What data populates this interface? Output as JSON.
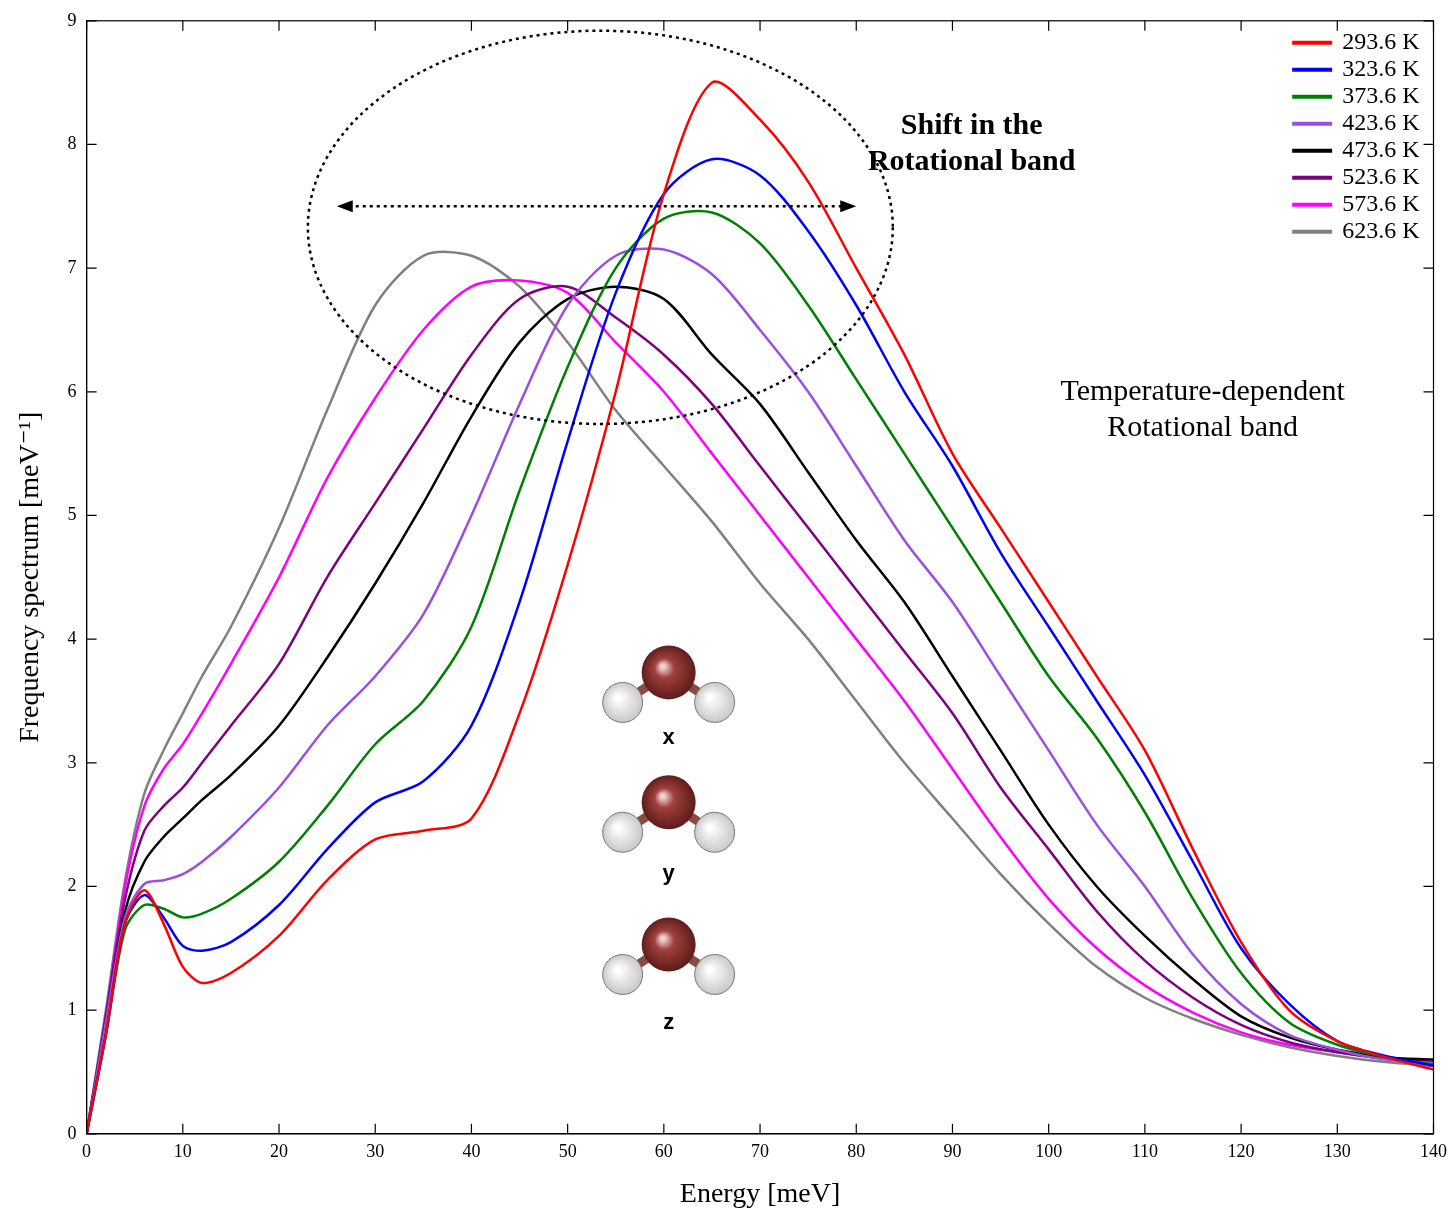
{
  "chart_data": {
    "type": "line",
    "x_label": "Energy [meV]",
    "y_label": "Frequency spectrum [meV⁻¹]",
    "x": [
      0,
      2,
      4,
      6,
      8,
      10,
      12,
      15,
      20,
      25,
      30,
      35,
      40,
      45,
      50,
      55,
      60,
      65,
      70,
      75,
      80,
      85,
      90,
      95,
      100,
      105,
      110,
      115,
      120,
      125,
      130,
      135,
      140
    ],
    "xlim": [
      0,
      140
    ],
    "xticks": [
      0,
      10,
      20,
      30,
      40,
      50,
      60,
      70,
      80,
      90,
      100,
      110,
      120,
      130,
      140
    ],
    "ylim": [
      0,
      9
    ],
    "yticks": [
      0,
      1,
      2,
      3,
      4,
      5,
      6,
      7,
      8,
      9
    ],
    "grid": false,
    "legend": "upper right",
    "series": [
      {
        "name": "293.6 K",
        "color": "#ff0000",
        "values": [
          0,
          0.8,
          1.7,
          1.97,
          1.7,
          1.35,
          1.22,
          1.3,
          1.6,
          2.05,
          2.38,
          2.45,
          2.55,
          3.4,
          4.6,
          6.0,
          7.6,
          8.5,
          8.2,
          7.7,
          7.0,
          6.3,
          5.5,
          4.9,
          4.3,
          3.7,
          3.1,
          2.3,
          1.55,
          1.0,
          0.75,
          0.62,
          0.52
        ]
      },
      {
        "name": "323.6 K",
        "color": "#0000ff",
        "values": [
          0,
          0.8,
          1.7,
          1.93,
          1.75,
          1.52,
          1.48,
          1.55,
          1.85,
          2.3,
          2.68,
          2.85,
          3.3,
          4.3,
          5.6,
          6.8,
          7.6,
          7.88,
          7.75,
          7.3,
          6.7,
          6.0,
          5.4,
          4.7,
          4.1,
          3.5,
          2.9,
          2.2,
          1.5,
          1.05,
          0.75,
          0.63,
          0.55
        ]
      },
      {
        "name": "373.6 K",
        "color": "#008000",
        "values": [
          0,
          0.8,
          1.65,
          1.85,
          1.82,
          1.75,
          1.78,
          1.9,
          2.2,
          2.65,
          3.15,
          3.5,
          4.1,
          5.2,
          6.2,
          7.0,
          7.4,
          7.45,
          7.2,
          6.7,
          6.1,
          5.5,
          4.9,
          4.3,
          3.7,
          3.2,
          2.6,
          1.9,
          1.3,
          0.9,
          0.72,
          0.62,
          0.56
        ]
      },
      {
        "name": "423.6 K",
        "color": "#9b4fe0",
        "values": [
          0,
          0.9,
          1.75,
          2.02,
          2.05,
          2.1,
          2.2,
          2.4,
          2.8,
          3.3,
          3.7,
          4.2,
          5.0,
          5.9,
          6.7,
          7.1,
          7.15,
          6.95,
          6.5,
          6.0,
          5.4,
          4.8,
          4.3,
          3.7,
          3.1,
          2.5,
          2.0,
          1.45,
          1.05,
          0.8,
          0.68,
          0.6,
          0.57
        ]
      },
      {
        "name": "473.6 K",
        "color": "#000000",
        "values": [
          0,
          0.9,
          1.8,
          2.2,
          2.4,
          2.55,
          2.7,
          2.9,
          3.3,
          3.85,
          4.45,
          5.1,
          5.8,
          6.4,
          6.75,
          6.85,
          6.75,
          6.3,
          5.9,
          5.35,
          4.8,
          4.3,
          3.7,
          3.1,
          2.5,
          2.0,
          1.6,
          1.25,
          0.95,
          0.78,
          0.68,
          0.62,
          0.6
        ]
      },
      {
        "name": "523.6 K",
        "color": "#800080",
        "values": [
          0,
          0.95,
          1.9,
          2.45,
          2.65,
          2.8,
          3.0,
          3.3,
          3.8,
          4.5,
          5.1,
          5.7,
          6.3,
          6.75,
          6.85,
          6.6,
          6.3,
          5.9,
          5.4,
          4.9,
          4.4,
          3.9,
          3.4,
          2.8,
          2.3,
          1.8,
          1.4,
          1.1,
          0.88,
          0.74,
          0.66,
          0.61,
          0.58
        ]
      },
      {
        "name": "573.6 K",
        "color": "#ff00ff",
        "values": [
          0,
          0.95,
          2.0,
          2.65,
          2.95,
          3.15,
          3.4,
          3.8,
          4.5,
          5.3,
          5.95,
          6.5,
          6.85,
          6.9,
          6.8,
          6.4,
          6.0,
          5.5,
          5.0,
          4.5,
          4.0,
          3.5,
          2.95,
          2.4,
          1.9,
          1.5,
          1.2,
          0.98,
          0.82,
          0.72,
          0.66,
          0.61,
          0.58
        ]
      },
      {
        "name": "623.6 K",
        "color": "#808080",
        "values": [
          0,
          1.0,
          2.05,
          2.75,
          3.1,
          3.4,
          3.7,
          4.1,
          4.9,
          5.85,
          6.7,
          7.1,
          7.1,
          6.85,
          6.4,
          5.85,
          5.4,
          4.95,
          4.45,
          4.0,
          3.5,
          3.0,
          2.55,
          2.1,
          1.7,
          1.35,
          1.1,
          0.93,
          0.8,
          0.7,
          0.63,
          0.58,
          0.55
        ]
      }
    ],
    "annotations": [
      {
        "text": "Shift in the Rotational band"
      },
      {
        "text": "Temperature-dependent Rotational band"
      },
      {
        "text": "x"
      },
      {
        "text": "y"
      },
      {
        "text": "z"
      }
    ]
  }
}
